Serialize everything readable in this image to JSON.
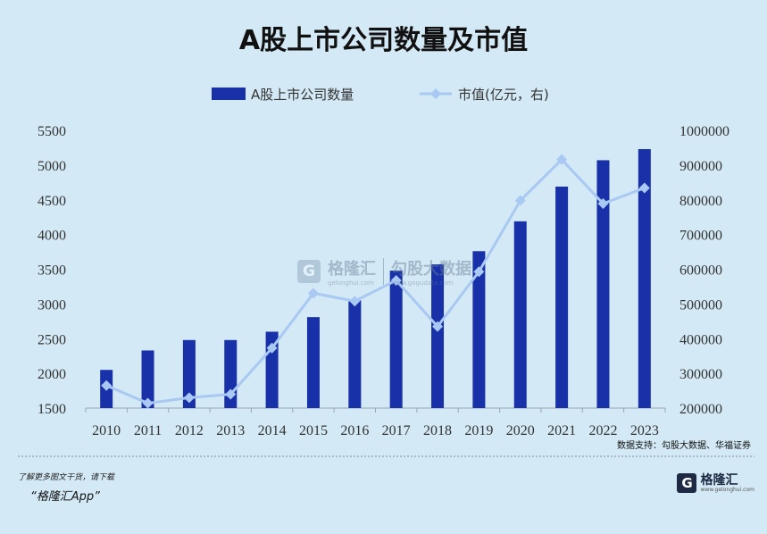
{
  "chart_data": {
    "type": "bar+line",
    "title": "A股上市公司数量及市值",
    "categories": [
      "2010",
      "2011",
      "2012",
      "2013",
      "2014",
      "2015",
      "2016",
      "2017",
      "2018",
      "2019",
      "2020",
      "2021",
      "2022",
      "2023"
    ],
    "series": [
      {
        "name": "A股上市公司数量",
        "type": "bar",
        "axis": "left",
        "color": "#1830a8",
        "values": [
          2050,
          2330,
          2480,
          2480,
          2600,
          2810,
          3050,
          3480,
          3570,
          3760,
          4190,
          4690,
          5070,
          5230
        ]
      },
      {
        "name": "市值(亿元，右)",
        "type": "line",
        "axis": "right",
        "color": "#a9c8f2",
        "values": [
          265000,
          214000,
          230000,
          240000,
          373000,
          531000,
          508000,
          568000,
          435000,
          593000,
          798000,
          916000,
          789000,
          834000
        ]
      }
    ],
    "y_left": {
      "min": 1500,
      "max": 5500,
      "ticks": [
        1500,
        2000,
        2500,
        3000,
        3500,
        4000,
        4500,
        5000,
        5500
      ]
    },
    "y_right": {
      "min": 200000,
      "max": 1000000,
      "ticks": [
        200000,
        300000,
        400000,
        500000,
        600000,
        700000,
        800000,
        900000,
        1000000
      ]
    },
    "legend_position": "top-center",
    "grid": false
  },
  "source": "数据支持：勾股大数据、华福证券",
  "footer": {
    "note": "了解更多图文干货，请下载",
    "app": "“格隆汇App”"
  },
  "brand": {
    "name": "格隆汇",
    "url": "www.gelonghui.com",
    "logo_glyph": "G"
  },
  "watermark": {
    "logo_glyph": "G",
    "name1": "格隆汇",
    "name2": "勾股大数据",
    "url1": "gelonghui.com",
    "url2": "www.gogudata.com"
  }
}
